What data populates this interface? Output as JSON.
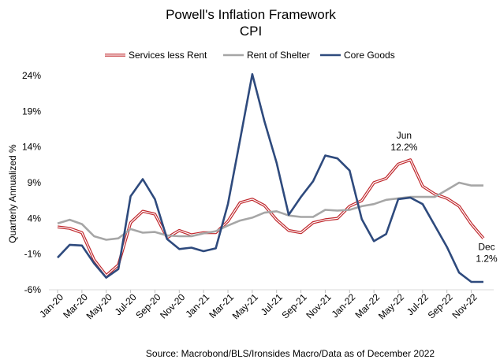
{
  "chart_data": {
    "type": "line",
    "title": "Powell's Inflation Framework",
    "subtitle": "CPI",
    "ylabel": "Quarterly Annualized %",
    "xlabel": "",
    "source": "Source: Macrobond/BLS/Ironsides Macro/Data as of December 2022",
    "ylim": [
      -6,
      24
    ],
    "yticks": [
      24,
      19,
      14,
      9,
      4,
      -1,
      -6
    ],
    "ytick_labels": [
      "24%",
      "19%",
      "14%",
      "9%",
      "4%",
      "-1%",
      "-6%"
    ],
    "x": [
      "Jan-20",
      "Feb-20",
      "Mar-20",
      "Apr-20",
      "May-20",
      "Jun-20",
      "Jul-20",
      "Aug-20",
      "Sep-20",
      "Oct-20",
      "Nov-20",
      "Dec-20",
      "Jan-21",
      "Feb-21",
      "Mar-21",
      "Apr-21",
      "May-21",
      "Jun-21",
      "Jul-21",
      "Aug-21",
      "Sep-21",
      "Oct-21",
      "Nov-21",
      "Dec-21",
      "Jan-22",
      "Feb-22",
      "Mar-22",
      "Apr-22",
      "May-22",
      "Jun-22",
      "Jul-22",
      "Aug-22",
      "Sep-22",
      "Oct-22",
      "Nov-22",
      "Dec-22"
    ],
    "xtick_labels": [
      "Jan-20",
      "Mar-20",
      "May-20",
      "Jul-20",
      "Sep-20",
      "Nov-20",
      "Jan-21",
      "Mar-21",
      "May-21",
      "Jul-21",
      "Sep-21",
      "Nov-21",
      "Jan-22",
      "Mar-22",
      "May-22",
      "Jul-22",
      "Sep-22",
      "Nov-22"
    ],
    "legend_position": "top",
    "series": [
      {
        "name": "Services less Rent",
        "color": "#c0282d",
        "style": "double",
        "values": [
          2.8,
          2.6,
          2.0,
          -1.8,
          -4.0,
          -2.5,
          3.4,
          5.0,
          4.6,
          1.3,
          2.3,
          1.7,
          2.0,
          2.0,
          3.6,
          6.2,
          6.7,
          5.8,
          3.8,
          2.3,
          2.0,
          3.4,
          3.8,
          4.0,
          5.7,
          6.5,
          9.0,
          9.6,
          11.6,
          12.2,
          8.5,
          7.4,
          6.8,
          5.7,
          3.2,
          1.2
        ]
      },
      {
        "name": "Rent of Shelter",
        "color": "#a6a6a6",
        "style": "solid",
        "values": [
          3.3,
          3.8,
          3.2,
          1.5,
          1.0,
          1.2,
          2.5,
          2.0,
          2.1,
          1.6,
          1.5,
          1.5,
          1.9,
          2.2,
          3.0,
          3.7,
          4.1,
          4.8,
          5.0,
          4.4,
          4.2,
          4.2,
          5.2,
          5.1,
          5.2,
          5.7,
          6.0,
          6.6,
          6.8,
          7.0,
          7.0,
          7.0,
          8.0,
          9.0,
          8.6,
          8.6
        ]
      },
      {
        "name": "Core Goods",
        "color": "#2e4a7d",
        "style": "solid",
        "values": [
          -1.5,
          0.3,
          0.2,
          -2.3,
          -4.3,
          -3.1,
          7.1,
          9.5,
          6.7,
          1.1,
          -0.3,
          -0.1,
          -0.6,
          -0.2,
          6.0,
          15.0,
          24.2,
          17.6,
          11.8,
          4.5,
          7.0,
          9.2,
          12.8,
          12.4,
          10.7,
          3.9,
          0.8,
          1.8,
          6.7,
          6.9,
          6.0,
          3.0,
          0.0,
          -3.6,
          -4.9,
          -4.9
        ]
      }
    ],
    "annotations": [
      {
        "series": 0,
        "index": 29,
        "lines": [
          "Jun",
          "12.2%"
        ],
        "placement": "above"
      },
      {
        "series": 0,
        "index": 35,
        "lines": [
          "Dec",
          "1.2%"
        ],
        "placement": "below"
      }
    ]
  }
}
